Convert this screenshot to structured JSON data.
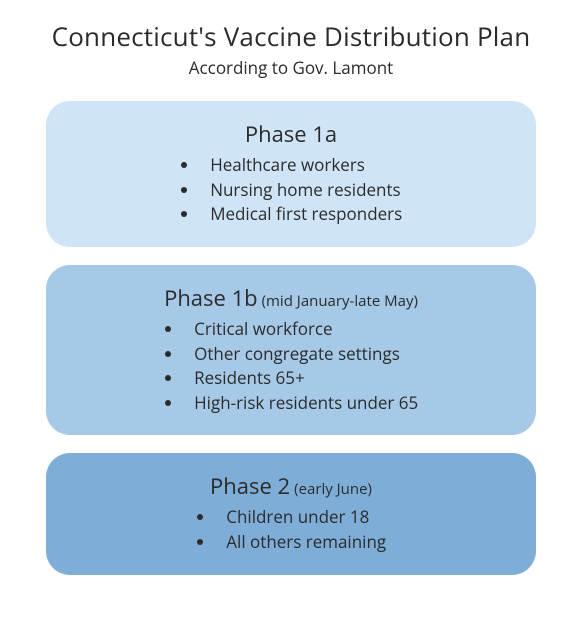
{
  "title": "Connecticut's Vaccine Distribution Plan",
  "subtitle": "According to Gov. Lamont",
  "text_color": "#2b2b2b",
  "background_color": "#ffffff",
  "title_fontsize": 26,
  "subtitle_fontsize": 17,
  "phase_title_fontsize": 22,
  "phase_timeframe_fontsize": 15,
  "item_fontsize": 17,
  "border_radius": 24,
  "phases": [
    {
      "id": "phase-1a",
      "title": "Phase 1a",
      "timeframe": "",
      "background_color": "#cfe4f6",
      "items": [
        "Healthcare workers",
        "Nursing home residents",
        "Medical first responders"
      ]
    },
    {
      "id": "phase-1b",
      "title": "Phase 1b",
      "timeframe": "(mid January-late May)",
      "background_color": "#a6c9e8",
      "items": [
        "Critical workforce",
        "Other congregate settings",
        "Residents 65+",
        "High-risk residents under 65"
      ]
    },
    {
      "id": "phase-2",
      "title": "Phase 2",
      "timeframe": "(early June)",
      "background_color": "#7eaed7",
      "items": [
        "Children under 18",
        "All others remaining"
      ]
    }
  ]
}
